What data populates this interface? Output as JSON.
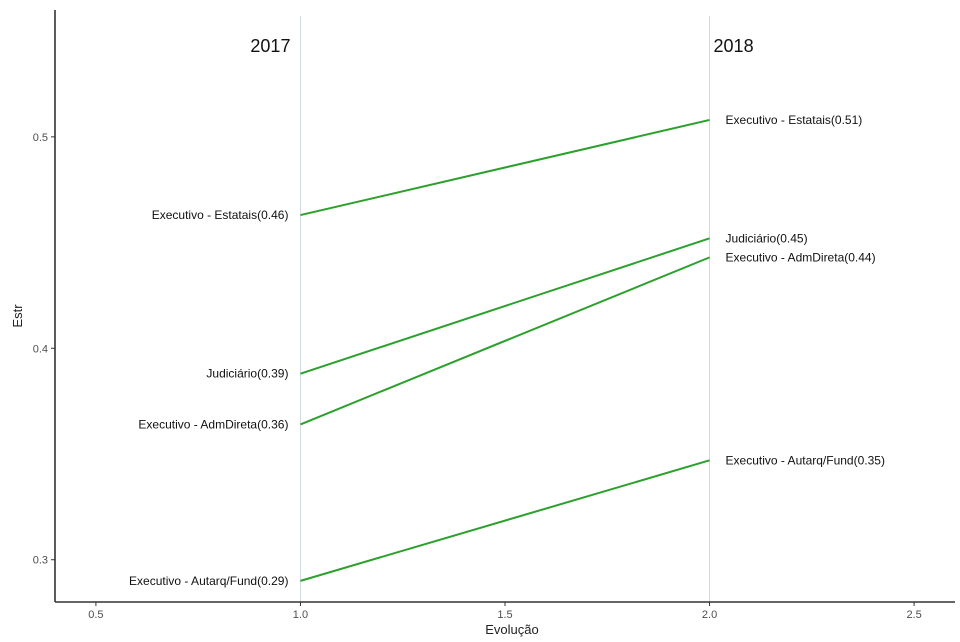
{
  "chart_data": {
    "type": "line",
    "chart_style": "slopegraph",
    "xlabel": "Evolução",
    "ylabel": "Estr",
    "xlim": [
      0.4,
      2.6
    ],
    "ylim": [
      0.28,
      0.56
    ],
    "x_ticks": [
      0.5,
      1.0,
      1.5,
      2.0,
      2.5
    ],
    "x_tick_labels": [
      "0.5",
      "1.0",
      "1.5",
      "2.0",
      "2.5"
    ],
    "y_ticks": [
      0.3,
      0.4,
      0.5
    ],
    "y_tick_labels": [
      "0.3",
      "0.4",
      "0.5"
    ],
    "grid": false,
    "line_color": "#2ca02c",
    "vertical_lines": [
      {
        "x": 1.0,
        "label": "2017"
      },
      {
        "x": 2.0,
        "label": "2018"
      }
    ],
    "series": [
      {
        "name": "Executivo - Estatais",
        "x": [
          1.0,
          2.0
        ],
        "values": [
          0.463,
          0.508
        ],
        "labels": [
          "Executivo - Estatais(0.46)",
          "Executivo - Estatais(0.51)"
        ]
      },
      {
        "name": "Judiciário",
        "x": [
          1.0,
          2.0
        ],
        "values": [
          0.388,
          0.452
        ],
        "labels": [
          "Judiciário(0.39)",
          "Judiciário(0.45)"
        ]
      },
      {
        "name": "Executivo - AdmDireta",
        "x": [
          1.0,
          2.0
        ],
        "values": [
          0.364,
          0.443
        ],
        "labels": [
          "Executivo - AdmDireta(0.36)",
          "Executivo - AdmDireta(0.44)"
        ]
      },
      {
        "name": "Executivo - Autarq/Fund",
        "x": [
          1.0,
          2.0
        ],
        "values": [
          0.29,
          0.347
        ],
        "labels": [
          "Executivo - Autarq/Fund(0.29)",
          "Executivo - Autarq/Fund(0.35)"
        ]
      }
    ]
  }
}
